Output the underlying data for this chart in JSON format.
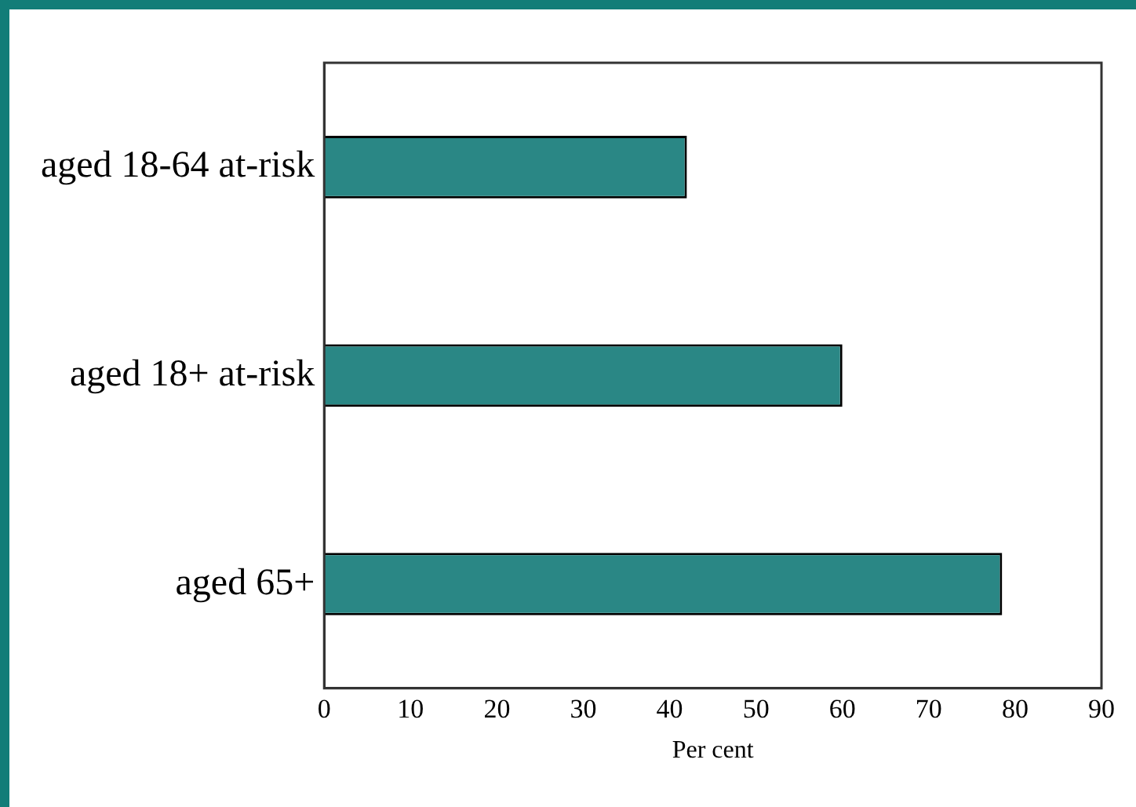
{
  "chart_data": {
    "type": "bar",
    "orientation": "horizontal",
    "xlabel": "Per cent",
    "categories": [
      "aged 18-64 at-risk",
      "aged 18+ at-risk",
      "aged 65+"
    ],
    "values": [
      42,
      60,
      78.5
    ],
    "color": "#2a8785",
    "xlim": [
      0,
      90
    ],
    "xticks": [
      0,
      10,
      20,
      30,
      40,
      50,
      60,
      70,
      80,
      90
    ],
    "grid": false,
    "legend": false
  }
}
